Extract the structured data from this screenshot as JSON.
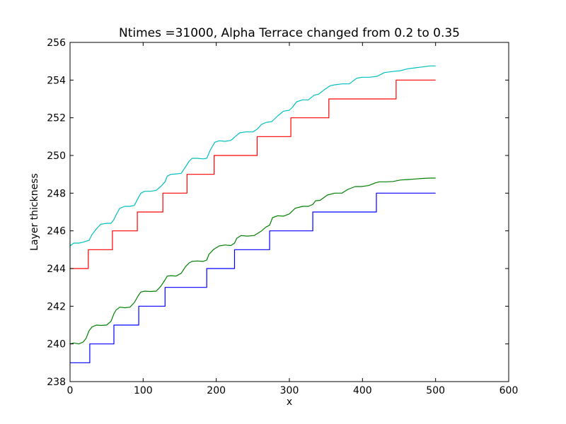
{
  "chart_data": {
    "type": "line",
    "title": "Ntimes =31000, Alpha Terrace  changed from 0.2 to 0.35",
    "xlabel": "x",
    "ylabel": "Layer thickness",
    "xlim": [
      0,
      600
    ],
    "ylim": [
      238,
      256
    ],
    "xticks": [
      0,
      100,
      200,
      300,
      400,
      500,
      600
    ],
    "yticks": [
      238,
      240,
      242,
      244,
      246,
      248,
      250,
      252,
      254,
      256
    ],
    "grid": false,
    "series": [
      {
        "color": "#0000ff",
        "step": true,
        "x": [
          0,
          27,
          60,
          94,
          130,
          187,
          225,
          273,
          332,
          419,
          500
        ],
        "y": [
          239,
          240,
          241,
          242,
          243,
          244,
          245,
          246,
          247,
          248,
          248
        ]
      },
      {
        "color": "#008000",
        "step": false,
        "x": [
          0,
          5,
          12,
          18,
          22,
          26,
          30,
          36,
          42,
          50,
          56,
          60,
          63,
          68,
          75,
          82,
          88,
          94,
          97,
          102,
          110,
          118,
          124,
          130,
          133,
          138,
          145,
          152,
          158,
          163,
          167,
          174,
          182,
          187,
          190,
          196,
          204,
          212,
          220,
          225,
          228,
          234,
          242,
          252,
          262,
          268,
          273,
          277,
          284,
          292,
          300,
          308,
          318,
          326,
          332,
          336,
          342,
          352,
          362,
          372,
          380,
          390,
          398,
          408,
          418,
          423,
          432,
          442,
          452,
          462,
          472,
          482,
          492,
          500
        ],
        "y": [
          240.0,
          240.05,
          240.0,
          240.1,
          240.3,
          240.7,
          240.9,
          241.0,
          240.98,
          241.0,
          241.2,
          241.6,
          241.8,
          241.95,
          241.92,
          241.95,
          242.2,
          242.6,
          242.75,
          242.8,
          242.78,
          242.8,
          243.05,
          243.4,
          243.6,
          243.62,
          243.6,
          243.75,
          244.1,
          244.3,
          244.38,
          244.4,
          244.38,
          244.45,
          244.75,
          245.0,
          245.2,
          245.25,
          245.22,
          245.35,
          245.6,
          245.75,
          245.72,
          245.75,
          246.0,
          246.2,
          246.3,
          246.7,
          246.8,
          246.78,
          246.9,
          247.2,
          247.3,
          247.3,
          247.4,
          247.6,
          247.62,
          247.9,
          248.0,
          248.0,
          248.2,
          248.35,
          248.35,
          248.4,
          248.55,
          248.6,
          248.6,
          248.62,
          248.7,
          248.72,
          248.75,
          248.78,
          248.8,
          248.8
        ]
      },
      {
        "color": "#ff0000",
        "step": true,
        "x": [
          0,
          25,
          58,
          92,
          127,
          160,
          197,
          256,
          302,
          354,
          446,
          500
        ],
        "y": [
          244,
          245,
          246,
          247,
          248,
          249,
          250,
          251,
          252,
          253,
          254,
          254
        ]
      },
      {
        "color": "#00bfbf",
        "step": false,
        "x": [
          0,
          5,
          12,
          18,
          22,
          26,
          30,
          36,
          42,
          50,
          56,
          60,
          63,
          68,
          75,
          82,
          88,
          94,
          97,
          102,
          110,
          118,
          124,
          130,
          133,
          138,
          145,
          152,
          158,
          163,
          167,
          174,
          182,
          187,
          192,
          198,
          204,
          212,
          220,
          226,
          232,
          240,
          250,
          256,
          262,
          268,
          276,
          284,
          292,
          300,
          304,
          310,
          318,
          326,
          334,
          340,
          348,
          356,
          362,
          372,
          382,
          392,
          400,
          410,
          420,
          430,
          440,
          452,
          462,
          472,
          482,
          492,
          500
        ],
        "y": [
          245.2,
          245.35,
          245.35,
          245.4,
          245.45,
          245.5,
          245.8,
          246.1,
          246.35,
          246.4,
          246.4,
          246.6,
          246.85,
          247.2,
          247.3,
          247.3,
          247.35,
          247.8,
          248.0,
          248.1,
          248.1,
          248.15,
          248.35,
          248.6,
          248.9,
          249.0,
          249.02,
          249.05,
          249.4,
          249.7,
          249.85,
          249.85,
          249.82,
          249.85,
          250.3,
          250.7,
          250.78,
          250.75,
          250.8,
          251.0,
          251.2,
          251.25,
          251.25,
          251.4,
          251.65,
          251.75,
          251.8,
          252.1,
          252.35,
          252.4,
          252.55,
          252.85,
          252.95,
          252.95,
          253.2,
          253.25,
          253.5,
          253.7,
          253.75,
          253.8,
          253.8,
          254.1,
          254.15,
          254.15,
          254.2,
          254.4,
          254.45,
          254.5,
          254.6,
          254.65,
          254.7,
          254.75,
          254.75
        ]
      }
    ]
  }
}
